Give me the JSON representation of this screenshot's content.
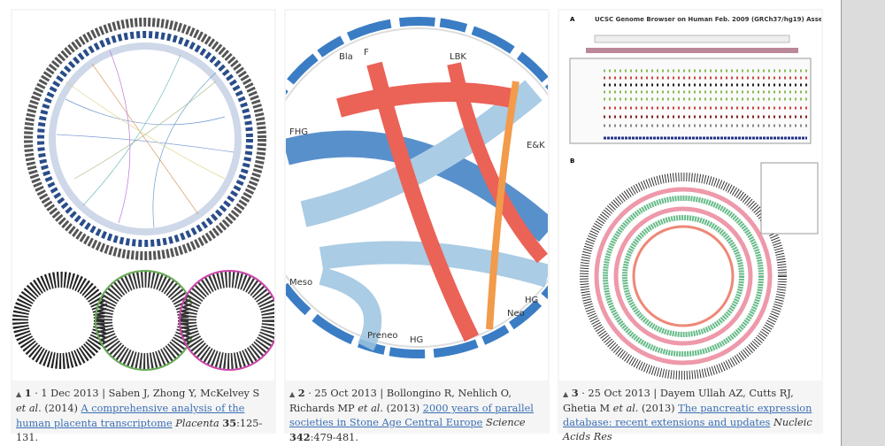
{
  "results": [
    {
      "number": "1",
      "date": "1 Dec 2013",
      "authors": "Saben J, Zhong Y, McKelvey S",
      "etal": "et al.",
      "year": "(2014)",
      "title": "A comprehensive analysis of the human placenta transcriptome",
      "journal": "Placenta",
      "volume": "35",
      "pages": ":125-131."
    },
    {
      "number": "2",
      "date": "25 Oct 2013",
      "authors": "Bollongino R, Nehlich O, Richards MP",
      "etal": "et al.",
      "year": "(2013)",
      "title": "2000 years of parallel societies in Stone Age Central Europe",
      "journal": "Science",
      "volume": "342",
      "pages": ":479-481.",
      "figure_labels": [
        "Bla",
        "F",
        "LBK",
        "E&K",
        "FHG",
        "Meso",
        "Preneo",
        "HG",
        "Neo",
        "HG"
      ]
    },
    {
      "number": "3",
      "date": "25 Oct 2013",
      "authors": "Dayem Ullah AZ, Cutts RJ, Ghetia M",
      "etal": "et al.",
      "year": "(2013)",
      "title": "The pancreatic expression database: recent extensions and updates",
      "journal": "Nucleic Acids Res",
      "figure_labels": {
        "a": "A",
        "b": "B",
        "heading": "UCSC Genome Browser on Human Feb. 2009 (GRCh37/hg19) Assembly"
      }
    }
  ],
  "icons": {
    "expand": "triangle-up-icon"
  },
  "colors": {
    "link": "#3a6fb4",
    "red": "#e8473a",
    "blue": "#3b7dc4",
    "lightblue": "#9cc4e0",
    "orange": "#f08a2c"
  }
}
